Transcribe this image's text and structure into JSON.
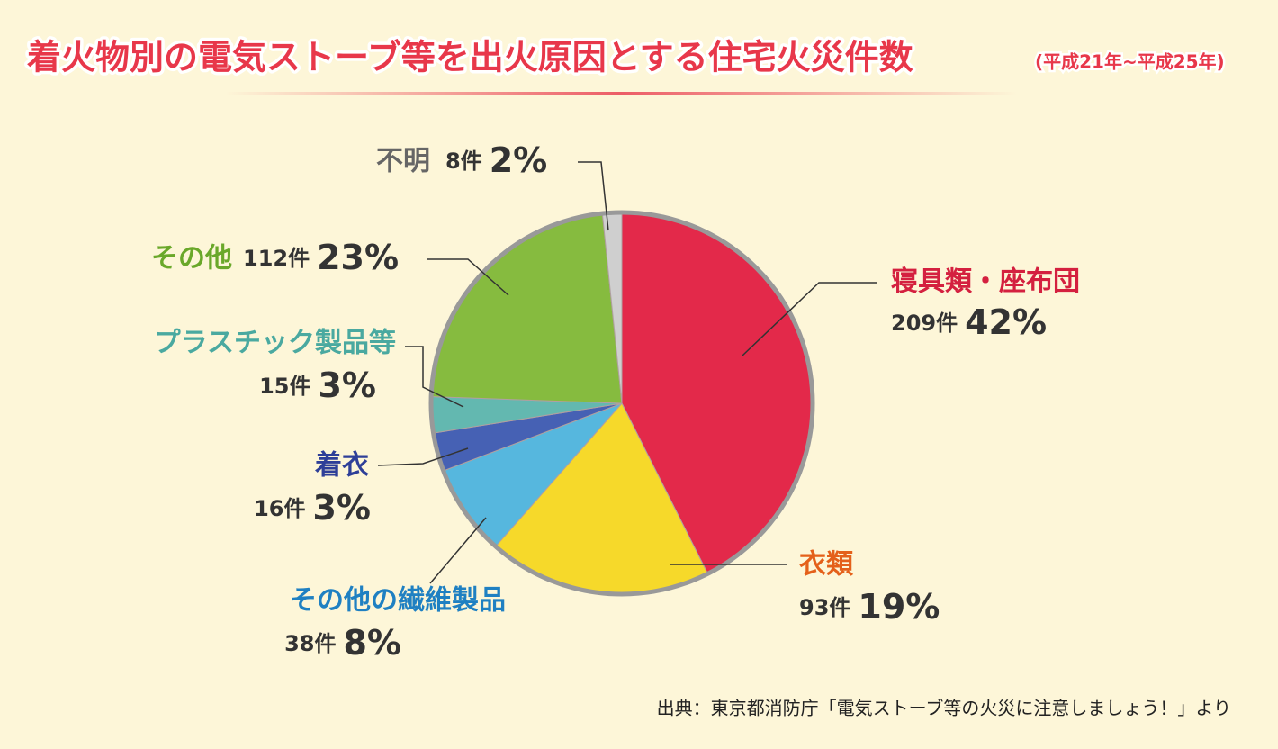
{
  "chart_data": {
    "type": "pie",
    "title": "着火物別の電気ストーブ等を出火原因とする住宅火災件数",
    "subtitle": "(平成21年~平成25年)",
    "categories": [
      "寝具類・座布団",
      "衣類",
      "その他の繊維製品",
      "着衣",
      "プラスチック製品等",
      "その他",
      "不明"
    ],
    "counts": [
      209,
      93,
      38,
      16,
      15,
      112,
      8
    ],
    "count_labels": [
      "209件",
      "93件",
      "38件",
      "16件",
      "15件",
      "112件",
      "8件"
    ],
    "values": [
      42,
      19,
      8,
      3,
      3,
      23,
      2
    ],
    "value_labels": [
      "42%",
      "19%",
      "8%",
      "3%",
      "3%",
      "23%",
      "2%"
    ],
    "colors": [
      "#e3294a",
      "#f6d92a",
      "#56b7de",
      "#4661b4",
      "#63b8b0",
      "#86bb3f",
      "#cfcfcf"
    ],
    "label_colors": [
      "#d4203f",
      "#e4601a",
      "#1f80c2",
      "#2e3f98",
      "#4aa9a0",
      "#6aa82a",
      "#666666"
    ],
    "source": "出典：東京都消防庁「電気ストーブ等の火災に注意しましょう！」より"
  }
}
